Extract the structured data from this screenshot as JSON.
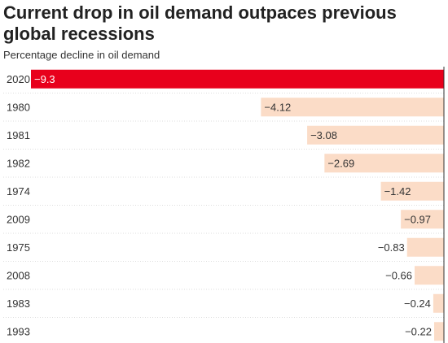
{
  "chart_data": {
    "type": "bar",
    "orientation": "horizontal",
    "title": "Current drop in oil demand outpaces previous global recessions",
    "subtitle": "Percentage decline in oil demand",
    "categories": [
      "2020",
      "1980",
      "1981",
      "1982",
      "1974",
      "2009",
      "1975",
      "2008",
      "1983",
      "1993"
    ],
    "values": [
      -9.3,
      -4.12,
      -3.08,
      -2.69,
      -1.42,
      -0.97,
      -0.83,
      -0.66,
      -0.24,
      -0.22
    ],
    "value_labels": [
      "−9.3",
      "−4.12",
      "−3.08",
      "−2.69",
      "−1.42",
      "−0.97",
      "−0.83",
      "−0.66",
      "−0.24",
      "−0.22"
    ],
    "xlim": [
      -9.3,
      0
    ],
    "highlight_category": "2020",
    "colors": {
      "highlight": "#e8001c",
      "bar": "#fbdcc7",
      "axis": "#333333",
      "gridline": "#dddddd"
    }
  }
}
